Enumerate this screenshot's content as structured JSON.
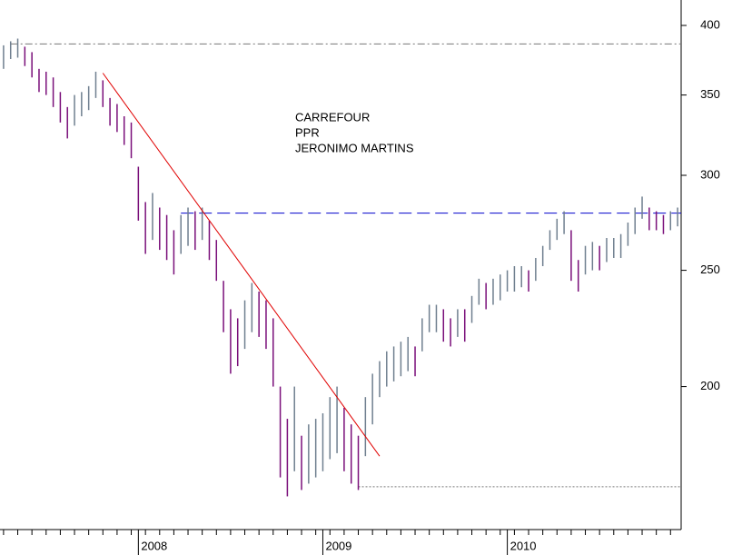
{
  "chart_data": {
    "type": "range",
    "texts": [
      "CARREFOUR",
      "PPR",
      "JERONIMO MARTINS"
    ],
    "categories": [
      null,
      null,
      null,
      null,
      null,
      null,
      null,
      null,
      null,
      null,
      null,
      null,
      null,
      null,
      null,
      null,
      null,
      null,
      null,
      "2008",
      null,
      null,
      null,
      null,
      null,
      null,
      null,
      null,
      null,
      null,
      null,
      null,
      null,
      null,
      null,
      null,
      null,
      null,
      null,
      null,
      null,
      null,
      null,
      null,
      null,
      "2009",
      null,
      null,
      null,
      null,
      null,
      null,
      null,
      null,
      null,
      null,
      null,
      null,
      null,
      null,
      null,
      null,
      null,
      null,
      null,
      null,
      null,
      null,
      null,
      null,
      null,
      "2010",
      null,
      null,
      null,
      null,
      null,
      null,
      null,
      null,
      null,
      null,
      null,
      null,
      null,
      null,
      null,
      null,
      null,
      null,
      null,
      null,
      null,
      null,
      null,
      null
    ],
    "high": [
      385,
      388,
      390,
      384,
      380,
      368,
      366,
      362,
      352,
      342,
      350,
      352,
      356,
      366,
      360,
      348,
      344,
      336,
      332,
      305,
      285,
      290,
      282,
      278,
      270,
      278,
      282,
      280,
      282,
      275,
      265,
      245,
      232,
      228,
      236,
      244,
      240,
      236,
      228,
      200,
      188,
      200,
      182,
      186,
      188,
      190,
      196,
      200,
      192,
      186,
      182,
      196,
      205,
      210,
      214,
      216,
      218,
      220,
      216,
      228,
      234,
      234,
      232,
      228,
      232,
      232,
      238,
      246,
      244,
      246,
      248,
      250,
      252,
      252,
      250,
      256,
      262,
      270,
      276,
      280,
      270,
      255,
      262,
      264,
      262,
      266,
      266,
      268,
      274,
      282,
      288,
      282,
      280,
      278,
      280,
      282
    ],
    "low": [
      368,
      375,
      376,
      370,
      362,
      352,
      350,
      342,
      332,
      322,
      330,
      336,
      340,
      348,
      342,
      330,
      326,
      318,
      310,
      275,
      258,
      265,
      260,
      255,
      248,
      258,
      262,
      260,
      265,
      255,
      245,
      222,
      205,
      208,
      215,
      222,
      220,
      215,
      200,
      168,
      162,
      170,
      164,
      166,
      168,
      170,
      174,
      176,
      170,
      166,
      164,
      175,
      186,
      196,
      200,
      202,
      204,
      206,
      204,
      214,
      222,
      222,
      218,
      216,
      220,
      218,
      226,
      234,
      232,
      234,
      236,
      240,
      240,
      242,
      240,
      245,
      252,
      260,
      265,
      268,
      245,
      240,
      248,
      250,
      250,
      254,
      256,
      256,
      262,
      268,
      276,
      270,
      270,
      268,
      270,
      272
    ],
    "up_color": "#6f7f8f",
    "down_color": "#7a0f7a",
    "log": true,
    "ylim": [
      152,
      420
    ],
    "yticks": [
      200,
      250,
      300,
      350,
      400
    ],
    "trend_line": {
      "from": 14,
      "to": 53,
      "values": [
        365,
        175
      ],
      "color": "#e00000"
    },
    "levels": [
      {
        "value": 386,
        "from": 1,
        "to": 95,
        "color": "#777777",
        "style": "dashdot"
      },
      {
        "value": 279,
        "from": 25,
        "to": 95,
        "color": "#0000cc",
        "style": "dashed"
      },
      {
        "value": 165,
        "from": 50,
        "to": 95,
        "color": "#777777",
        "style": "dotted"
      }
    ]
  }
}
